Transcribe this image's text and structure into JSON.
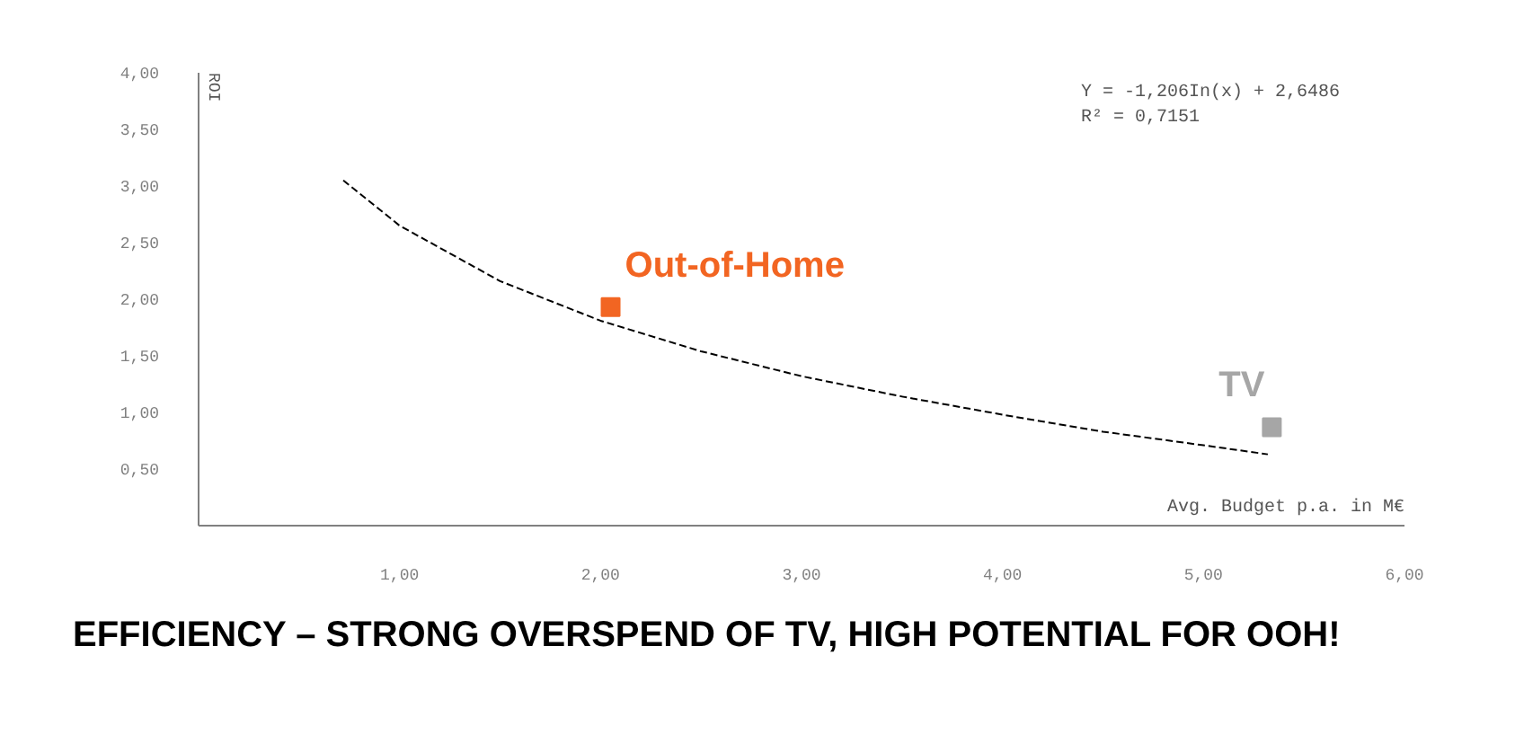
{
  "chart_data": {
    "type": "scatter",
    "title": "EFFICIENCY – STRONG OVERSPEND OF TV, HIGH POTENTIAL FOR OOH!",
    "xlabel": "Avg. Budget p.a. in M€",
    "ylabel": "ROI",
    "annotations": [
      "Y = -1,206In(x) + 2,6486",
      "R² = 0,7151"
    ],
    "series": [
      {
        "name": "Out-of-Home",
        "color": "#f26522",
        "x": [
          2.05
        ],
        "values": [
          1.93
        ],
        "marker": "square"
      },
      {
        "name": "TV",
        "color": "#a6a6a6",
        "x": [
          5.34
        ],
        "values": [
          0.87
        ],
        "marker": "square"
      },
      {
        "type": "line",
        "color": "#000000",
        "line_style": "dashed",
        "marker": "none",
        "x": [
          0.72,
          1.0,
          1.5,
          2.0,
          2.5,
          3.0,
          3.5,
          4.0,
          4.5,
          5.0,
          5.32
        ],
        "values": [
          3.05,
          2.65,
          2.16,
          1.81,
          1.54,
          1.32,
          1.14,
          0.98,
          0.83,
          0.71,
          0.63
        ]
      }
    ],
    "xlim": [
      0,
      6
    ],
    "ylim": [
      0,
      4
    ],
    "xticks": [
      {
        "value": 1,
        "label": "1,00"
      },
      {
        "value": 2,
        "label": "2,00"
      },
      {
        "value": 3,
        "label": "3,00"
      },
      {
        "value": 4,
        "label": "4,00"
      },
      {
        "value": 5,
        "label": "5,00"
      },
      {
        "value": 6,
        "label": "6,00"
      }
    ],
    "yticks": [
      {
        "value": 0.5,
        "label": "0,50"
      },
      {
        "value": 1,
        "label": "1,00"
      },
      {
        "value": 1.5,
        "label": "1,50"
      },
      {
        "value": 2,
        "label": "2,00"
      },
      {
        "value": 2.5,
        "label": "2,50"
      },
      {
        "value": 3,
        "label": "3,00"
      },
      {
        "value": 3.5,
        "label": "3,50"
      },
      {
        "value": 4,
        "label": "4,00"
      }
    ],
    "grid": false,
    "legend": false
  }
}
